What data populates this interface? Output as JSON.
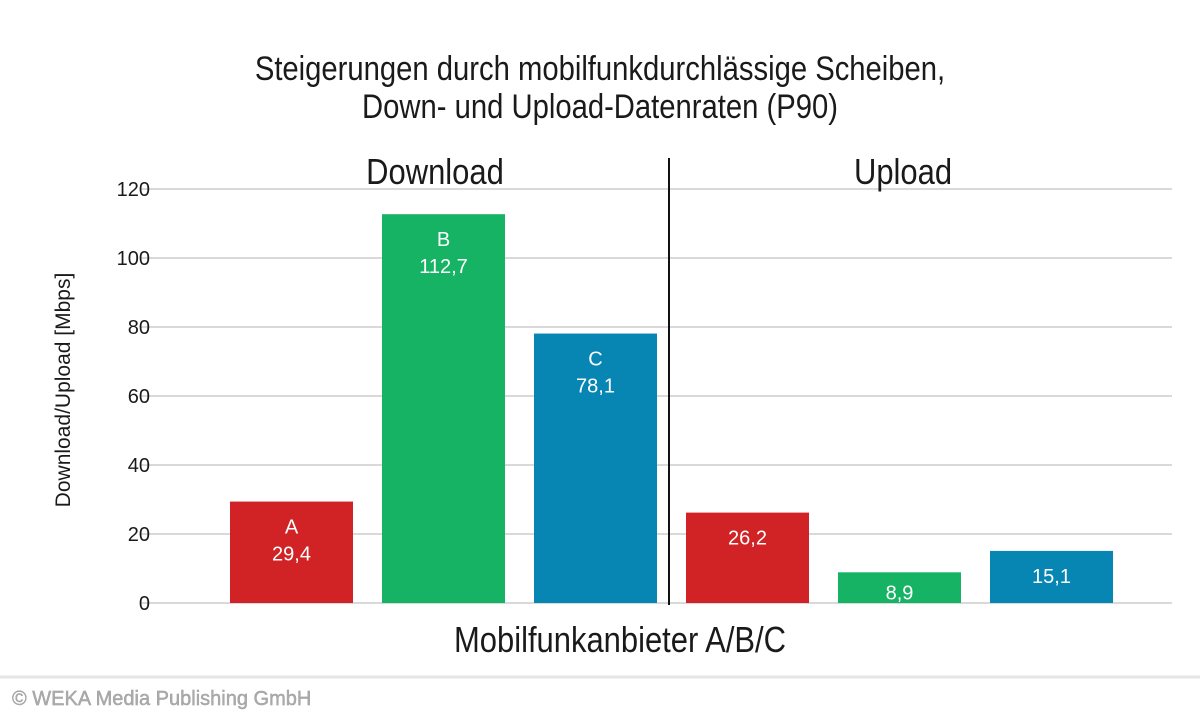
{
  "chart_data": {
    "type": "bar",
    "title": [
      "Steigerungen durch mobilfunkdurchlässige Scheiben,",
      "Down- und Upload-Datenraten (P90)"
    ],
    "xlabel": "Mobilfunkanbieter A/B/C",
    "ylabel": "Download/Upload [Mbps]",
    "ylim": [
      0,
      120
    ],
    "yticks": [
      "0",
      "20",
      "40",
      "60",
      "80",
      "100",
      "120"
    ],
    "grid": true,
    "groups": [
      {
        "label": "Download",
        "bars": [
          {
            "category": "A",
            "value": 29.4,
            "label": "29,4",
            "color": "#d12325"
          },
          {
            "category": "B",
            "value": 112.7,
            "label": "112,7",
            "color": "#17b364"
          },
          {
            "category": "C",
            "value": 78.1,
            "label": "78,1",
            "color": "#0886b3"
          }
        ]
      },
      {
        "label": "Upload",
        "bars": [
          {
            "category": "",
            "value": 26.2,
            "label": "26,2",
            "color": "#d12325"
          },
          {
            "category": "",
            "value": 8.9,
            "label": "8,9",
            "color": "#17b364"
          },
          {
            "category": "",
            "value": 15.1,
            "label": "15,1",
            "color": "#0886b3"
          }
        ]
      }
    ]
  },
  "footer": "© WEKA Media Publishing GmbH"
}
